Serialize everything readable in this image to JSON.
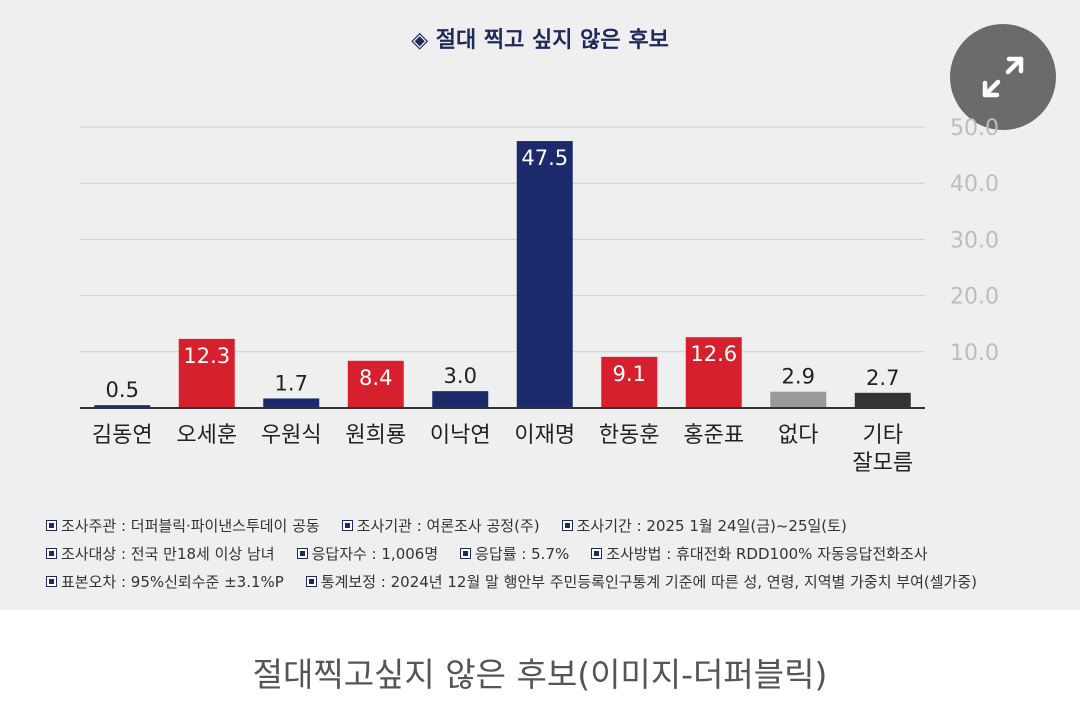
{
  "caption": "절대찍고싶지 않은 후보(이미지-더퍼블릭)",
  "icons": {
    "title_marker": "diamond-icon",
    "expand": "expand-arrows-icon",
    "note_marker": "square-bullet-icon"
  },
  "chart_data": {
    "type": "bar",
    "title": "◈ 절대 찍고 싶지 않은 후보",
    "categories": [
      "김동연",
      "오세훈",
      "우원식",
      "원희룡",
      "이낙연",
      "이재명",
      "한동훈",
      "홍준표",
      "없다",
      "기타\n잘모름"
    ],
    "values": [
      0.5,
      12.3,
      1.7,
      8.4,
      3.0,
      47.5,
      9.1,
      12.6,
      2.9,
      2.7
    ],
    "value_labels": [
      "0.5",
      "12.3",
      "1.7",
      "8.4",
      "3.0",
      "47.5",
      "9.1",
      "12.6",
      "2.9",
      "2.7"
    ],
    "colors": [
      "#1b2a6b",
      "#d7202e",
      "#1b2a6b",
      "#d7202e",
      "#1b2a6b",
      "#1b2a6b",
      "#d7202e",
      "#d7202e",
      "#9a9a9a",
      "#333333"
    ],
    "label_inside": [
      false,
      true,
      false,
      true,
      false,
      true,
      true,
      true,
      false,
      false
    ],
    "yticks": [
      "10.0",
      "20.0",
      "30.0",
      "40.0",
      "50.0"
    ],
    "ylim": [
      0,
      50
    ],
    "grid": true,
    "xlabel": "",
    "ylabel": ""
  },
  "notes": [
    [
      "조사주관 : 더퍼블릭·파이낸스투데이 공동",
      "조사기관 : 여론조사 공정(주)",
      "조사기간 : 2025 1월 24일(금)~25일(토)"
    ],
    [
      "조사대상 : 전국 만18세 이상 남녀",
      "응답자수 : 1,006명",
      "응답률 : 5.7%",
      "조사방법 : 휴대전화 RDD100% 자동응답전화조사"
    ],
    [
      "표본오차 : 95%신뢰수준 ±3.1%P",
      "통계보정 : 2024년 12월 말 행안부 주민등록인구통계 기준에 따른 성, 연령, 지역별 가중치 부여(셀가중)"
    ]
  ]
}
